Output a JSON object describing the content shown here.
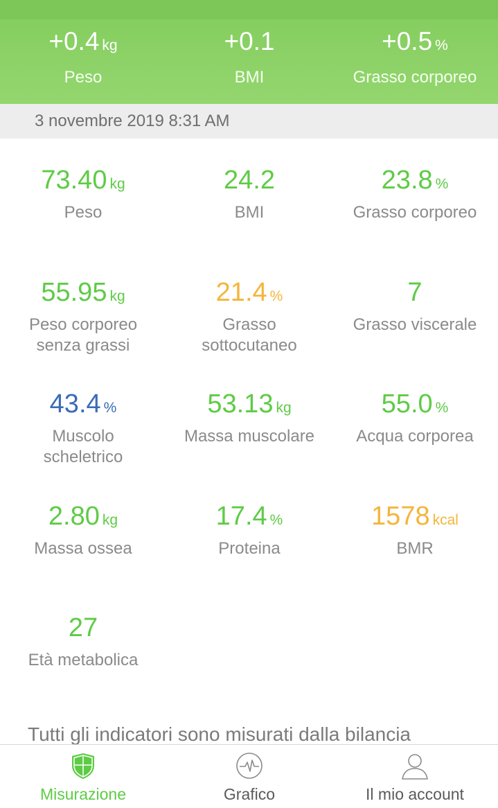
{
  "summary": [
    {
      "value": "+0.4",
      "unit": "kg",
      "label": "Peso"
    },
    {
      "value": "+0.1",
      "unit": "",
      "label": "BMI"
    },
    {
      "value": "+0.5",
      "unit": "%",
      "label": "Grasso corporeo"
    }
  ],
  "date": "3 novembre 2019 8:31 AM",
  "metrics": [
    {
      "value": "73.40",
      "unit": "kg",
      "label": "Peso",
      "color": "#5ecb45"
    },
    {
      "value": "24.2",
      "unit": "",
      "label": "BMI",
      "color": "#5ecb45"
    },
    {
      "value": "23.8",
      "unit": "%",
      "label": "Grasso corporeo",
      "color": "#5ecb45"
    },
    {
      "value": "55.95",
      "unit": "kg",
      "label": "Peso corporeo senza grassi",
      "color": "#5ecb45"
    },
    {
      "value": "21.4",
      "unit": "%",
      "label": "Grasso sottocutaneo",
      "color": "#f4b53b"
    },
    {
      "value": "7",
      "unit": "",
      "label": "Grasso viscerale",
      "color": "#5ecb45"
    },
    {
      "value": "43.4",
      "unit": "%",
      "label": "Muscolo scheletrico",
      "color": "#3b6cb7"
    },
    {
      "value": "53.13",
      "unit": "kg",
      "label": "Massa muscolare",
      "color": "#5ecb45"
    },
    {
      "value": "55.0",
      "unit": "%",
      "label": "Acqua corporea",
      "color": "#5ecb45"
    },
    {
      "value": "2.80",
      "unit": "kg",
      "label": "Massa ossea",
      "color": "#5ecb45"
    },
    {
      "value": "17.4",
      "unit": "%",
      "label": "Proteina",
      "color": "#5ecb45"
    },
    {
      "value": "1578",
      "unit": "kcal",
      "label": "BMR",
      "color": "#f4b53b"
    },
    {
      "value": "27",
      "unit": "",
      "label": "Età metabolica",
      "color": "#5ecb45"
    }
  ],
  "footnote": "Tutti gli indicatori sono misurati dalla bilancia",
  "nav": [
    {
      "label": "Misurazione",
      "icon": "shield-icon",
      "active": true
    },
    {
      "label": "Grafico",
      "icon": "pulse-icon",
      "active": false
    },
    {
      "label": "Il mio account",
      "icon": "user-icon",
      "active": false
    }
  ],
  "colors": {
    "accent": "#5ecb45",
    "header": "#8bd265",
    "warning": "#f4b53b",
    "info": "#3b6cb7"
  }
}
